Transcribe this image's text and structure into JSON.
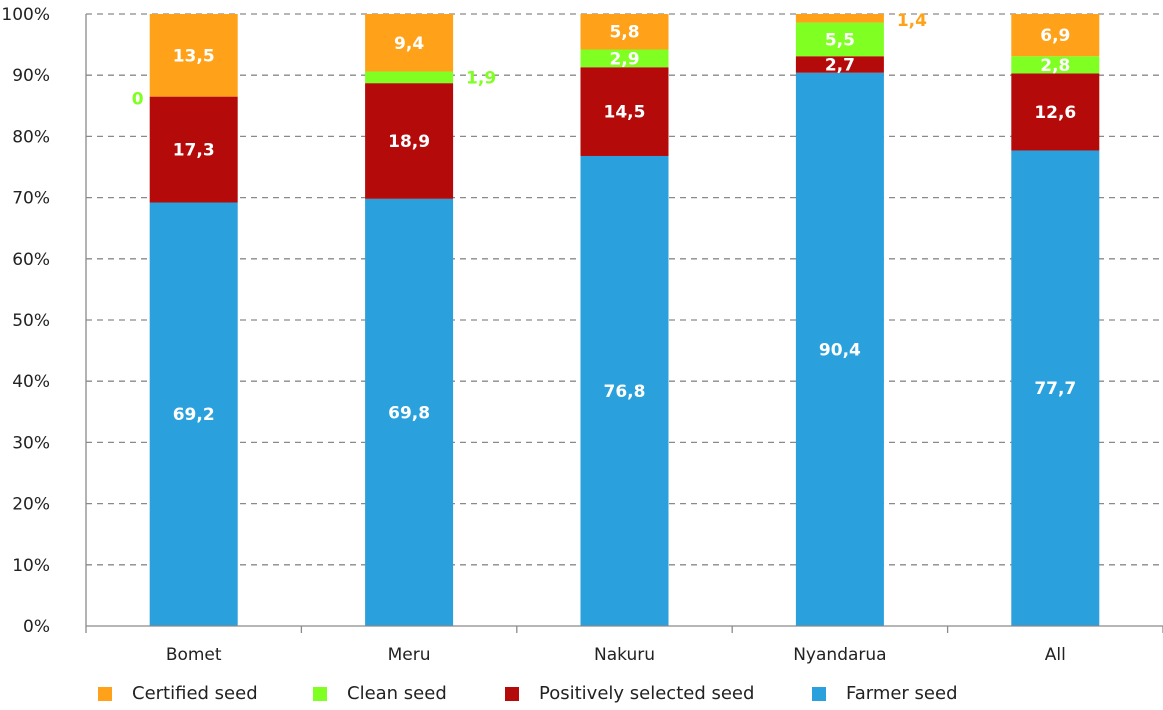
{
  "chart_data": {
    "type": "bar",
    "stacked": true,
    "categories": [
      "Bomet",
      "Meru",
      "Nakuru",
      "Nyandarua",
      "All"
    ],
    "series": [
      {
        "name": "Farmer seed",
        "color": "#2aa0dc",
        "values": [
          69.2,
          69.8,
          76.8,
          90.4,
          77.7
        ],
        "labels": [
          "69,2",
          "69,8",
          "76,8",
          "90,4",
          "77,7"
        ]
      },
      {
        "name": "Positively selected seed",
        "color": "#b50a0a",
        "values": [
          17.3,
          18.9,
          14.5,
          2.7,
          12.6
        ],
        "labels": [
          "17,3",
          "18,9",
          "14,5",
          "2,7",
          "12,6"
        ]
      },
      {
        "name": "Clean seed",
        "color": "#80ff22",
        "values": [
          0,
          1.9,
          2.9,
          5.5,
          2.8
        ],
        "labels": [
          "0",
          "1,9",
          "2,9",
          "5,5",
          "2,8"
        ]
      },
      {
        "name": "Certified seed",
        "color": "#ffa21a",
        "values": [
          13.5,
          9.4,
          5.8,
          1.4,
          6.9
        ],
        "labels": [
          "13,5",
          "9,4",
          "5,8",
          "1,4",
          "6,9"
        ]
      }
    ],
    "yticks": [
      "0%",
      "10%",
      "20%",
      "30%",
      "40%",
      "50%",
      "60%",
      "70%",
      "80%",
      "90%",
      "100%"
    ],
    "ylim": [
      0,
      100
    ],
    "grid": true,
    "legend_position": "bottom",
    "legend_order": [
      "Certified seed",
      "Clean seed",
      "Positively selected seed",
      "Farmer seed"
    ]
  }
}
